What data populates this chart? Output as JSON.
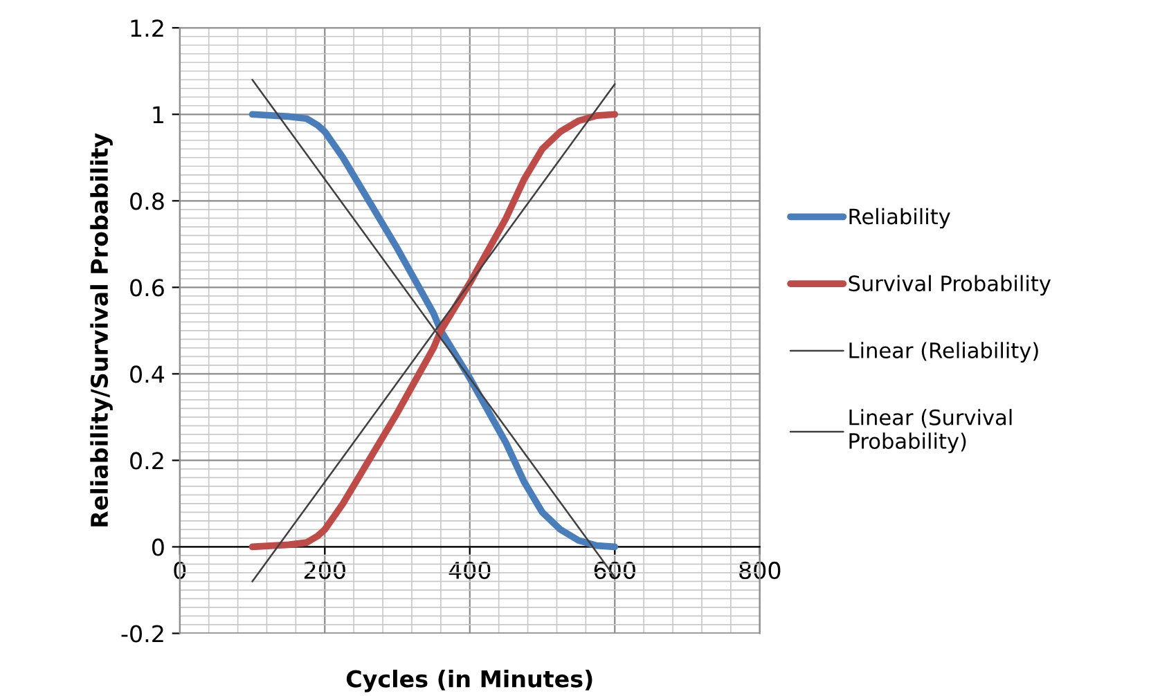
{
  "chart_data": {
    "type": "line",
    "xlabel": "Cycles (in Minutes)",
    "ylabel": "Reliability/Survival Probability",
    "xlim": [
      0,
      800
    ],
    "xticks": [
      0,
      200,
      400,
      600,
      800
    ],
    "ylim": [
      -0.2,
      1.2
    ],
    "yticks": [
      -0.2,
      0,
      0.2,
      0.4,
      0.6,
      0.8,
      1,
      1.2
    ],
    "grid": true,
    "legend": "right",
    "marker": "none",
    "line_style": "solid",
    "series": [
      {
        "name": "Reliability",
        "color": "#4a7ebb",
        "x": [
          100,
          150,
          175,
          190,
          200,
          225,
          250,
          300,
          350,
          360,
          400,
          450,
          475,
          500,
          525,
          550,
          575,
          600
        ],
        "values": [
          1.0,
          0.995,
          0.99,
          0.975,
          0.96,
          0.9,
          0.83,
          0.69,
          0.54,
          0.5,
          0.39,
          0.24,
          0.15,
          0.08,
          0.04,
          0.015,
          0.003,
          0.0
        ]
      },
      {
        "name": "Survival Probability",
        "color": "#be4b48",
        "x": [
          100,
          150,
          175,
          190,
          200,
          225,
          250,
          300,
          350,
          360,
          400,
          450,
          475,
          500,
          525,
          550,
          575,
          600
        ],
        "values": [
          0.0,
          0.005,
          0.01,
          0.025,
          0.04,
          0.1,
          0.17,
          0.31,
          0.46,
          0.5,
          0.61,
          0.76,
          0.85,
          0.92,
          0.96,
          0.985,
          0.997,
          1.0
        ]
      },
      {
        "name": "Linear (Reliability)",
        "color": "#404040",
        "x": [
          100,
          600
        ],
        "values": [
          1.08,
          -0.07
        ]
      },
      {
        "name": "Linear (Survival Probability)",
        "color": "#404040",
        "x": [
          100,
          600
        ],
        "values": [
          -0.08,
          1.07
        ]
      }
    ]
  }
}
